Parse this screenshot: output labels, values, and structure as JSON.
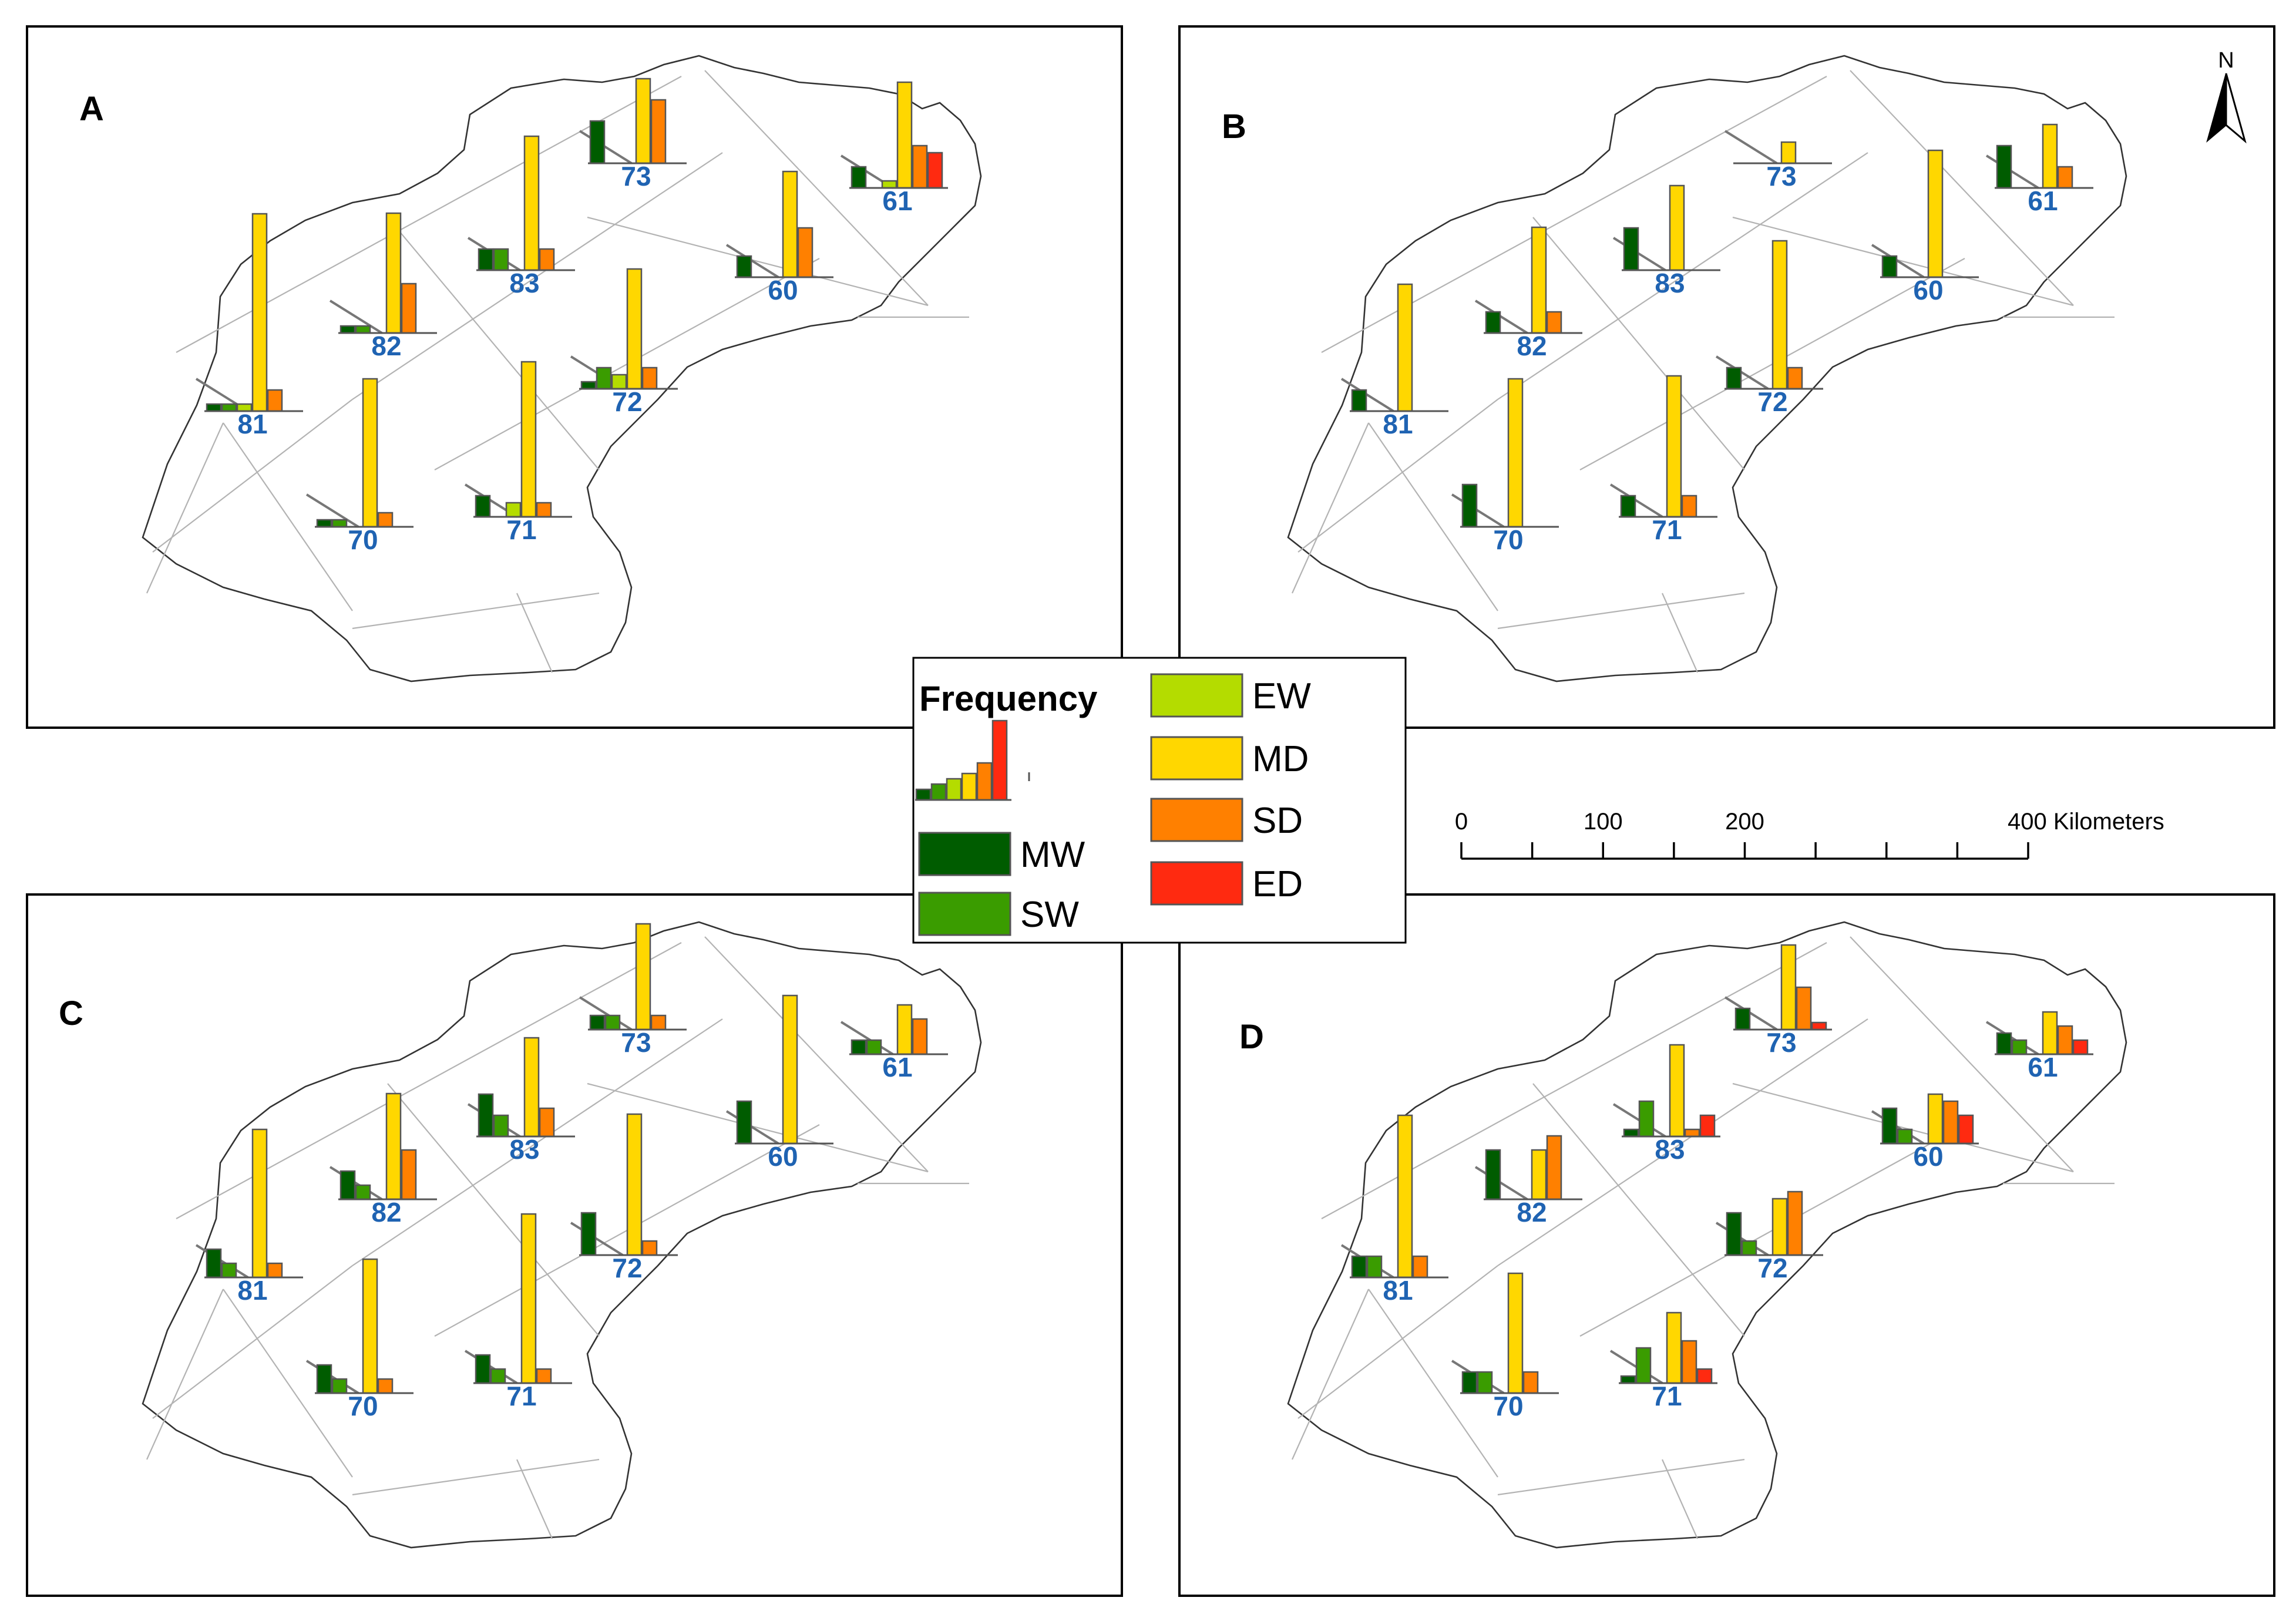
{
  "categories": [
    {
      "code": "MW",
      "label": "MW",
      "color": "#005c00"
    },
    {
      "code": "SW",
      "label": "SW",
      "color": "#3a9c00"
    },
    {
      "code": "EW",
      "label": "EW",
      "color": "#b4dc00"
    },
    {
      "code": "MD",
      "label": "MD",
      "color": "#ffd700"
    },
    {
      "code": "SD",
      "label": "SD",
      "color": "#ff8000"
    },
    {
      "code": "ED",
      "label": "ED",
      "color": "#ff2a10"
    }
  ],
  "legend": {
    "title": "Frequency",
    "example_values": [
      2,
      3,
      4,
      5,
      7,
      15
    ]
  },
  "north_arrow": {
    "label": "N"
  },
  "scale_bar": {
    "tick_labels": [
      "0",
      "100",
      "200",
      "400 Kilometers"
    ],
    "tick_values": [
      0,
      100,
      200,
      400
    ],
    "minor_ticks": [
      50,
      150,
      250,
      300,
      350
    ]
  },
  "chart_data": [
    {
      "type": "bar",
      "panel": "A",
      "title": "A",
      "series_order": [
        "MW",
        "SW",
        "EW",
        "MD",
        "SD",
        "ED"
      ],
      "stations": [
        {
          "id": "73",
          "values": [
            6,
            0,
            0,
            12,
            9,
            0
          ]
        },
        {
          "id": "61",
          "values": [
            3,
            0,
            1,
            15,
            6,
            5
          ]
        },
        {
          "id": "83",
          "values": [
            3,
            3,
            0,
            19,
            3,
            0
          ]
        },
        {
          "id": "60",
          "values": [
            3,
            0,
            0,
            15,
            7,
            0
          ]
        },
        {
          "id": "82",
          "values": [
            1,
            1,
            0,
            17,
            7,
            0
          ]
        },
        {
          "id": "72",
          "values": [
            1,
            3,
            2,
            17,
            3,
            0
          ]
        },
        {
          "id": "81",
          "values": [
            1,
            1,
            1,
            28,
            3,
            0
          ]
        },
        {
          "id": "70",
          "values": [
            1,
            1,
            0,
            21,
            2,
            0
          ]
        },
        {
          "id": "71",
          "values": [
            3,
            0,
            2,
            22,
            2,
            0
          ]
        }
      ]
    },
    {
      "type": "bar",
      "panel": "B",
      "title": "B",
      "series_order": [
        "MW",
        "SW",
        "EW",
        "MD",
        "SD",
        "ED"
      ],
      "stations": [
        {
          "id": "73",
          "values": [
            0,
            0,
            0,
            3,
            0,
            0
          ]
        },
        {
          "id": "61",
          "values": [
            6,
            0,
            0,
            9,
            3,
            0
          ]
        },
        {
          "id": "83",
          "values": [
            6,
            0,
            0,
            12,
            0,
            0
          ]
        },
        {
          "id": "60",
          "values": [
            3,
            0,
            0,
            18,
            0,
            0
          ]
        },
        {
          "id": "82",
          "values": [
            3,
            0,
            0,
            15,
            3,
            0
          ]
        },
        {
          "id": "72",
          "values": [
            3,
            0,
            0,
            21,
            3,
            0
          ]
        },
        {
          "id": "81",
          "values": [
            3,
            0,
            0,
            18,
            0,
            0
          ]
        },
        {
          "id": "70",
          "values": [
            6,
            0,
            0,
            21,
            0,
            0
          ]
        },
        {
          "id": "71",
          "values": [
            3,
            0,
            0,
            20,
            3,
            0
          ]
        }
      ]
    },
    {
      "type": "bar",
      "panel": "C",
      "title": "C",
      "series_order": [
        "MW",
        "SW",
        "EW",
        "MD",
        "SD",
        "ED"
      ],
      "stations": [
        {
          "id": "73",
          "values": [
            2,
            2,
            0,
            15,
            2,
            0
          ]
        },
        {
          "id": "61",
          "values": [
            2,
            2,
            0,
            7,
            5,
            0
          ]
        },
        {
          "id": "83",
          "values": [
            6,
            3,
            0,
            14,
            4,
            0
          ]
        },
        {
          "id": "60",
          "values": [
            6,
            0,
            0,
            21,
            0,
            0
          ]
        },
        {
          "id": "82",
          "values": [
            4,
            2,
            0,
            15,
            7,
            0
          ]
        },
        {
          "id": "72",
          "values": [
            6,
            0,
            0,
            20,
            2,
            0
          ]
        },
        {
          "id": "81",
          "values": [
            4,
            2,
            0,
            21,
            2,
            0
          ]
        },
        {
          "id": "70",
          "values": [
            4,
            2,
            0,
            19,
            2,
            0
          ]
        },
        {
          "id": "71",
          "values": [
            4,
            2,
            0,
            24,
            2,
            0
          ]
        }
      ]
    },
    {
      "type": "bar",
      "panel": "D",
      "title": "D",
      "series_order": [
        "MW",
        "SW",
        "EW",
        "MD",
        "SD",
        "ED"
      ],
      "stations": [
        {
          "id": "73",
          "values": [
            3,
            0,
            0,
            12,
            6,
            1
          ]
        },
        {
          "id": "61",
          "values": [
            3,
            2,
            0,
            6,
            4,
            2
          ]
        },
        {
          "id": "83",
          "values": [
            1,
            5,
            0,
            13,
            1,
            3
          ]
        },
        {
          "id": "60",
          "values": [
            5,
            2,
            0,
            7,
            6,
            4
          ]
        },
        {
          "id": "82",
          "values": [
            7,
            0,
            0,
            7,
            9,
            0
          ]
        },
        {
          "id": "72",
          "values": [
            6,
            2,
            0,
            8,
            9,
            0
          ]
        },
        {
          "id": "81",
          "values": [
            3,
            3,
            0,
            23,
            3,
            0
          ]
        },
        {
          "id": "70",
          "values": [
            3,
            3,
            0,
            17,
            3,
            0
          ]
        },
        {
          "id": "71",
          "values": [
            1,
            5,
            0,
            10,
            6,
            2
          ]
        }
      ]
    }
  ]
}
